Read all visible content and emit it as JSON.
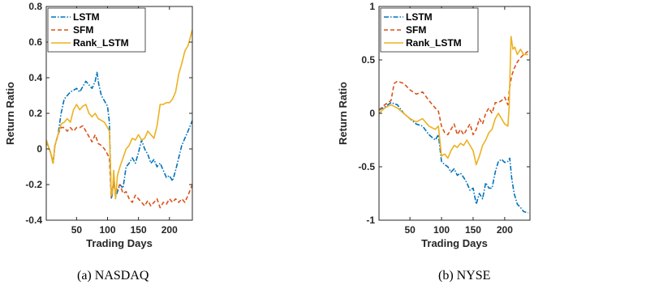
{
  "colors": {
    "LSTM": "#0072BD",
    "SFM": "#D95319",
    "Rank_LSTM": "#EDB120"
  },
  "chart_data": [
    {
      "type": "line",
      "caption": "(a)  NASDAQ",
      "xlabel": "Trading Days",
      "ylabel": "Return Ratio",
      "xlim": [
        1,
        237
      ],
      "ylim": [
        -0.4,
        0.8
      ],
      "xticks": [
        50,
        100,
        150,
        200
      ],
      "yticks": [
        -0.4,
        -0.2,
        0,
        0.2,
        0.4,
        0.6,
        0.8
      ],
      "ytick_labels": [
        "-0.4",
        "-0.2",
        "0",
        "0.2",
        "0.4",
        "0.6",
        "0.8"
      ],
      "legend_position": "top-left",
      "series": [
        {
          "name": "LSTM",
          "x": [
            1,
            8,
            12,
            15,
            20,
            25,
            30,
            35,
            40,
            45,
            50,
            55,
            60,
            65,
            70,
            75,
            80,
            83,
            86,
            90,
            95,
            100,
            103,
            106,
            108,
            110,
            113,
            116,
            120,
            125,
            130,
            135,
            140,
            145,
            150,
            155,
            160,
            165,
            170,
            175,
            180,
            185,
            190,
            195,
            200,
            205,
            210,
            215,
            220,
            225,
            230,
            237
          ],
          "y": [
            0.05,
            -0.02,
            -0.08,
            0.02,
            0.08,
            0.2,
            0.28,
            0.3,
            0.32,
            0.33,
            0.34,
            0.32,
            0.35,
            0.38,
            0.36,
            0.34,
            0.38,
            0.43,
            0.36,
            0.3,
            0.27,
            0.24,
            0.15,
            -0.28,
            -0.25,
            -0.15,
            -0.27,
            -0.24,
            -0.2,
            -0.22,
            -0.1,
            -0.08,
            -0.05,
            -0.08,
            -0.02,
            0.05,
            0.0,
            -0.03,
            -0.08,
            -0.06,
            -0.1,
            -0.08,
            -0.12,
            -0.16,
            -0.15,
            -0.18,
            -0.12,
            -0.05,
            0.02,
            0.06,
            0.1,
            0.16
          ]
        },
        {
          "name": "SFM",
          "x": [
            1,
            8,
            12,
            15,
            20,
            25,
            30,
            35,
            40,
            45,
            50,
            55,
            60,
            65,
            70,
            75,
            80,
            85,
            90,
            95,
            100,
            103,
            106,
            108,
            110,
            113,
            116,
            120,
            125,
            130,
            135,
            140,
            145,
            150,
            155,
            160,
            165,
            170,
            175,
            180,
            185,
            190,
            195,
            200,
            205,
            210,
            215,
            220,
            225,
            230,
            237
          ],
          "y": [
            0.04,
            -0.02,
            -0.08,
            0.02,
            0.08,
            0.12,
            0.12,
            0.1,
            0.12,
            0.1,
            0.12,
            0.12,
            0.13,
            0.1,
            0.07,
            0.04,
            0.08,
            0.03,
            0.02,
            0.0,
            -0.03,
            -0.05,
            -0.27,
            -0.22,
            -0.2,
            -0.24,
            -0.22,
            -0.2,
            -0.25,
            -0.24,
            -0.28,
            -0.3,
            -0.26,
            -0.28,
            -0.3,
            -0.32,
            -0.29,
            -0.32,
            -0.3,
            -0.28,
            -0.33,
            -0.3,
            -0.31,
            -0.28,
            -0.3,
            -0.28,
            -0.3,
            -0.28,
            -0.3,
            -0.26,
            -0.2
          ]
        },
        {
          "name": "Rank_LSTM",
          "x": [
            1,
            8,
            12,
            15,
            20,
            25,
            30,
            35,
            40,
            45,
            50,
            55,
            60,
            65,
            70,
            75,
            80,
            85,
            90,
            95,
            100,
            103,
            106,
            108,
            110,
            113,
            116,
            120,
            125,
            130,
            135,
            140,
            145,
            150,
            155,
            160,
            165,
            170,
            175,
            180,
            185,
            190,
            195,
            200,
            205,
            210,
            215,
            220,
            225,
            230,
            237
          ],
          "y": [
            0.05,
            -0.02,
            -0.08,
            0.02,
            0.08,
            0.14,
            0.15,
            0.17,
            0.15,
            0.22,
            0.25,
            0.22,
            0.24,
            0.25,
            0.2,
            0.18,
            0.2,
            0.17,
            0.16,
            0.15,
            0.12,
            0.1,
            -0.26,
            -0.25,
            -0.12,
            -0.28,
            -0.15,
            -0.1,
            -0.05,
            0.0,
            0.02,
            0.06,
            0.05,
            0.08,
            0.05,
            0.06,
            0.1,
            0.08,
            0.06,
            0.13,
            0.25,
            0.25,
            0.26,
            0.26,
            0.28,
            0.32,
            0.42,
            0.48,
            0.55,
            0.58,
            0.67
          ]
        }
      ]
    },
    {
      "type": "line",
      "caption": "(b)  NYSE",
      "xlabel": "Trading Days",
      "ylabel": "Return Ratio",
      "xlim": [
        1,
        240
      ],
      "ylim": [
        -1,
        1
      ],
      "xticks": [
        50,
        100,
        150,
        200
      ],
      "yticks": [
        -1,
        -0.5,
        0,
        0.5,
        1
      ],
      "ytick_labels": [
        "-1",
        "-0.5",
        "0",
        "0.5",
        "1"
      ],
      "legend_position": "top-left",
      "series": [
        {
          "name": "LSTM",
          "x": [
            1,
            10,
            20,
            30,
            40,
            50,
            60,
            70,
            80,
            90,
            95,
            100,
            105,
            110,
            115,
            120,
            125,
            130,
            135,
            140,
            145,
            150,
            155,
            160,
            165,
            170,
            175,
            180,
            185,
            190,
            195,
            200,
            205,
            208,
            211,
            215,
            220,
            225,
            230,
            237
          ],
          "y": [
            0.03,
            0.06,
            0.1,
            0.08,
            0.0,
            -0.05,
            -0.1,
            -0.12,
            -0.2,
            -0.25,
            -0.2,
            -0.45,
            -0.48,
            -0.5,
            -0.55,
            -0.52,
            -0.58,
            -0.56,
            -0.6,
            -0.65,
            -0.72,
            -0.7,
            -0.85,
            -0.75,
            -0.8,
            -0.65,
            -0.7,
            -0.7,
            -0.55,
            -0.45,
            -0.43,
            -0.46,
            -0.45,
            -0.42,
            -0.6,
            -0.75,
            -0.85,
            -0.88,
            -0.92,
            -0.93
          ]
        },
        {
          "name": "SFM",
          "x": [
            1,
            10,
            20,
            25,
            30,
            40,
            50,
            60,
            70,
            80,
            90,
            95,
            100,
            105,
            110,
            115,
            120,
            125,
            130,
            135,
            140,
            145,
            150,
            155,
            160,
            165,
            170,
            175,
            180,
            185,
            190,
            195,
            200,
            205,
            208,
            211,
            215,
            220,
            225,
            230,
            237
          ],
          "y": [
            0.03,
            0.08,
            0.12,
            0.28,
            0.3,
            0.28,
            0.22,
            0.18,
            0.2,
            0.12,
            0.05,
            0.02,
            -0.12,
            -0.18,
            -0.2,
            -0.15,
            -0.1,
            -0.2,
            -0.15,
            -0.2,
            -0.15,
            -0.1,
            -0.2,
            -0.15,
            -0.05,
            -0.1,
            0.0,
            0.05,
            0.0,
            0.1,
            0.1,
            0.12,
            0.15,
            0.08,
            0.25,
            0.35,
            0.42,
            0.48,
            0.52,
            0.55,
            0.58
          ]
        },
        {
          "name": "Rank_LSTM",
          "x": [
            1,
            10,
            20,
            30,
            40,
            50,
            60,
            70,
            80,
            90,
            95,
            100,
            105,
            110,
            115,
            120,
            125,
            130,
            135,
            140,
            145,
            150,
            155,
            160,
            165,
            170,
            175,
            180,
            185,
            190,
            195,
            200,
            205,
            207,
            210,
            213,
            216,
            220,
            225,
            230,
            237
          ],
          "y": [
            0.0,
            0.05,
            0.08,
            0.05,
            0.0,
            -0.05,
            -0.08,
            -0.05,
            -0.12,
            -0.15,
            -0.12,
            -0.4,
            -0.38,
            -0.42,
            -0.35,
            -0.3,
            -0.32,
            -0.28,
            -0.3,
            -0.25,
            -0.3,
            -0.35,
            -0.48,
            -0.4,
            -0.3,
            -0.25,
            -0.18,
            -0.15,
            -0.05,
            0.0,
            -0.05,
            -0.1,
            -0.12,
            0.05,
            0.72,
            0.6,
            0.62,
            0.55,
            0.6,
            0.55,
            0.55
          ]
        }
      ]
    }
  ]
}
